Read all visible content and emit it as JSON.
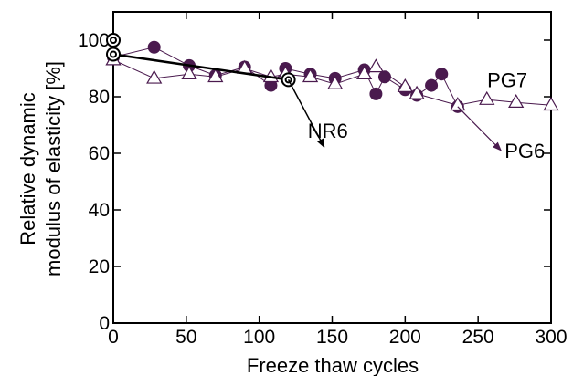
{
  "chart_data": {
    "type": "scatter",
    "title": "",
    "xlabel": "Freeze thaw cycles",
    "ylabel_lines": [
      "Relative dynamic",
      "modulus of elasticity [%]"
    ],
    "xlim": [
      0,
      300
    ],
    "ylim": [
      0,
      110
    ],
    "x_ticks": [
      0,
      50,
      100,
      150,
      200,
      250,
      300
    ],
    "y_ticks": [
      0,
      20,
      40,
      60,
      80,
      100
    ],
    "grid": false,
    "legend": "none",
    "series": [
      {
        "name": "PG6",
        "marker": "filled-circle",
        "color": "#4a1a4e",
        "x": [
          0,
          28,
          52,
          70,
          90,
          108,
          118,
          135,
          152,
          172,
          180,
          186,
          200,
          208,
          218,
          225,
          236
        ],
        "y": [
          94,
          97.5,
          91,
          87.5,
          90.5,
          84,
          90,
          88,
          86.5,
          89.5,
          81,
          87,
          82.5,
          80.5,
          84,
          88,
          76.5
        ]
      },
      {
        "name": "PG7",
        "marker": "open-triangle",
        "color": "#4a1a4e",
        "x": [
          0,
          28,
          52,
          70,
          90,
          108,
          118,
          135,
          152,
          172,
          180,
          200,
          208,
          236,
          256,
          276,
          300
        ],
        "y": [
          93,
          86.5,
          88,
          87,
          90,
          87,
          88,
          87,
          84.5,
          88,
          90.5,
          83.5,
          81,
          77,
          79,
          78,
          77
        ]
      },
      {
        "name": "NR6",
        "marker": "double-circle",
        "color": "#000000",
        "x": [
          0,
          0,
          120
        ],
        "y": [
          100,
          95,
          86
        ]
      }
    ],
    "annotations": [
      {
        "text": "PG7",
        "x": 270,
        "y": 86
      },
      {
        "text": "NR6",
        "x": 147,
        "y": 68
      },
      {
        "text": "PG6",
        "x": 282,
        "y": 61
      }
    ]
  }
}
